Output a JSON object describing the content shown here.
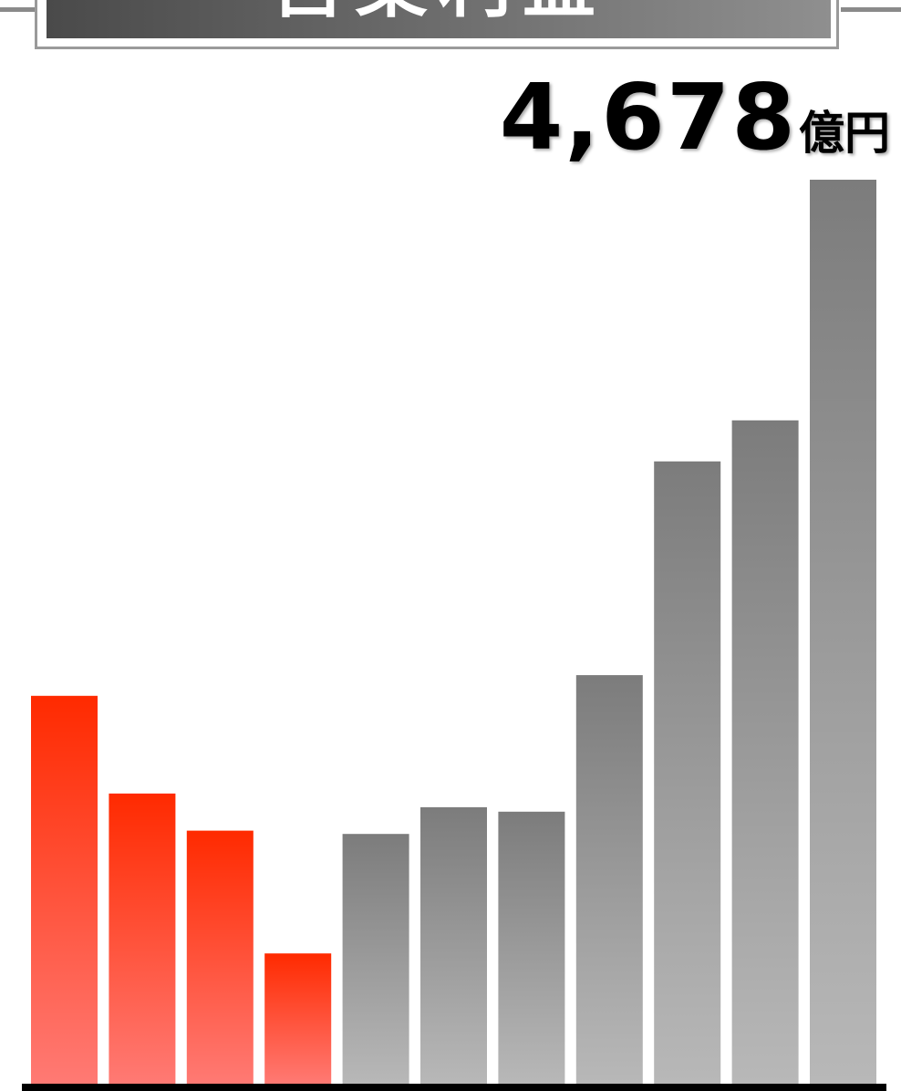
{
  "banner": {
    "title": "営業利益"
  },
  "headline": {
    "value": "4,678",
    "unit": "億円"
  },
  "colors": {
    "decline_top": "#ff2a00",
    "decline_bottom": "#ff7a74",
    "growth_top": "#7c7c7c",
    "growth_bottom": "#b8b8b8",
    "baseline": "#000000"
  },
  "chart_data": {
    "type": "bar",
    "values": [
      2010,
      1505,
      1313,
      678,
      1296,
      1434,
      1411,
      2117,
      3222,
      3434,
      4678
    ],
    "highlight": [
      "decline",
      "decline",
      "decline",
      "decline",
      "growth",
      "growth",
      "growth",
      "growth",
      "growth",
      "growth",
      "growth"
    ],
    "ylim": [
      0,
      4678
    ],
    "grid": false,
    "legend": "none"
  }
}
